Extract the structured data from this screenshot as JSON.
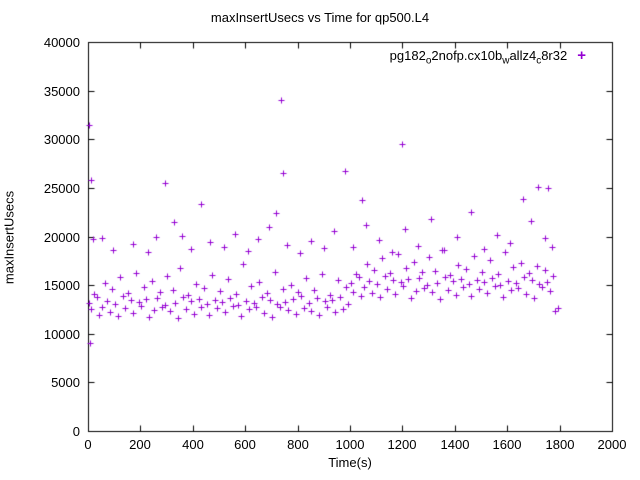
{
  "title": "maxInsertUsecs vs Time for qp500.L4",
  "legend": {
    "parts": [
      "pg182",
      "o",
      "2nofp.cx10b",
      "w",
      "allz4",
      "c",
      "8r32"
    ],
    "marker": "+",
    "color": "#9400d3"
  },
  "chart_data": {
    "type": "scatter",
    "title": "maxInsertUsecs vs Time for qp500.L4",
    "xlabel": "Time(s)",
    "ylabel": "maxInsertUsecs",
    "xlim": [
      0,
      2000
    ],
    "ylim": [
      0,
      40000
    ],
    "x_ticks": [
      0,
      200,
      400,
      600,
      800,
      1000,
      1200,
      1400,
      1600,
      1800,
      2000
    ],
    "y_ticks": [
      0,
      5000,
      10000,
      15000,
      20000,
      25000,
      30000,
      35000,
      40000
    ],
    "grid": false,
    "legend_position": "top-right",
    "series": [
      {
        "name": "pg182_o2nofp.cx10b_wallz4_c8r32",
        "color": "#9400d3",
        "marker": "plus",
        "points": [
          [
            3,
            13200
          ],
          [
            13,
            12500
          ],
          [
            23,
            14100
          ],
          [
            33,
            13800
          ],
          [
            43,
            11900
          ],
          [
            53,
            12800
          ],
          [
            63,
            15200
          ],
          [
            73,
            13400
          ],
          [
            83,
            12200
          ],
          [
            93,
            14600
          ],
          [
            103,
            13100
          ],
          [
            113,
            11800
          ],
          [
            123,
            15800
          ],
          [
            133,
            13900
          ],
          [
            143,
            12600
          ],
          [
            153,
            14200
          ],
          [
            163,
            13500
          ],
          [
            173,
            12100
          ],
          [
            183,
            16200
          ],
          [
            193,
            13300
          ],
          [
            203,
            12900
          ],
          [
            213,
            14800
          ],
          [
            223,
            13600
          ],
          [
            233,
            11700
          ],
          [
            243,
            15400
          ],
          [
            253,
            12400
          ],
          [
            263,
            13700
          ],
          [
            273,
            14300
          ],
          [
            283,
            12700
          ],
          [
            293,
            13000
          ],
          [
            303,
            15900
          ],
          [
            313,
            12300
          ],
          [
            323,
            14500
          ],
          [
            333,
            13200
          ],
          [
            343,
            11600
          ],
          [
            353,
            16800
          ],
          [
            363,
            13800
          ],
          [
            373,
            12500
          ],
          [
            383,
            14000
          ],
          [
            393,
            13400
          ],
          [
            403,
            12000
          ],
          [
            413,
            15100
          ],
          [
            423,
            13600
          ],
          [
            433,
            12800
          ],
          [
            443,
            14700
          ],
          [
            453,
            13100
          ],
          [
            463,
            11900
          ],
          [
            473,
            16000
          ],
          [
            483,
            13500
          ],
          [
            493,
            12600
          ],
          [
            503,
            14400
          ],
          [
            513,
            13300
          ],
          [
            523,
            12200
          ],
          [
            533,
            15600
          ],
          [
            543,
            13700
          ],
          [
            553,
            12900
          ],
          [
            563,
            14100
          ],
          [
            573,
            13000
          ],
          [
            583,
            11800
          ],
          [
            593,
            17200
          ],
          [
            603,
            13400
          ],
          [
            613,
            12500
          ],
          [
            623,
            14900
          ],
          [
            633,
            13200
          ],
          [
            643,
            12700
          ],
          [
            653,
            15300
          ],
          [
            663,
            13800
          ],
          [
            673,
            12100
          ],
          [
            683,
            14200
          ],
          [
            693,
            13500
          ],
          [
            703,
            11700
          ],
          [
            713,
            16400
          ],
          [
            723,
            13100
          ],
          [
            733,
            12800
          ],
          [
            743,
            14600
          ],
          [
            753,
            13300
          ],
          [
            763,
            12400
          ],
          [
            773,
            15000
          ],
          [
            783,
            13600
          ],
          [
            793,
            12000
          ],
          [
            803,
            14300
          ],
          [
            813,
            13900
          ],
          [
            823,
            12600
          ],
          [
            833,
            15700
          ],
          [
            843,
            13200
          ],
          [
            853,
            12300
          ],
          [
            863,
            14500
          ],
          [
            873,
            13700
          ],
          [
            883,
            11900
          ],
          [
            893,
            16100
          ],
          [
            903,
            13400
          ],
          [
            913,
            12700
          ],
          [
            923,
            14000
          ],
          [
            933,
            13500
          ],
          [
            943,
            12200
          ],
          [
            953,
            15500
          ],
          [
            963,
            13800
          ],
          [
            973,
            12500
          ],
          [
            983,
            14800
          ],
          [
            993,
            13100
          ],
          [
            1003,
            15200
          ],
          [
            1013,
            14300
          ],
          [
            1023,
            16100
          ],
          [
            1033,
            15800
          ],
          [
            1043,
            13900
          ],
          [
            1053,
            14800
          ],
          [
            1063,
            17200
          ],
          [
            1073,
            15400
          ],
          [
            1083,
            14200
          ],
          [
            1093,
            16600
          ],
          [
            1103,
            15100
          ],
          [
            1113,
            13800
          ],
          [
            1123,
            17800
          ],
          [
            1133,
            15900
          ],
          [
            1143,
            14600
          ],
          [
            1153,
            16200
          ],
          [
            1163,
            15500
          ],
          [
            1173,
            14100
          ],
          [
            1183,
            18200
          ],
          [
            1193,
            15300
          ],
          [
            1203,
            14900
          ],
          [
            1213,
            16800
          ],
          [
            1223,
            15600
          ],
          [
            1233,
            13700
          ],
          [
            1243,
            17400
          ],
          [
            1253,
            14400
          ],
          [
            1263,
            15700
          ],
          [
            1273,
            16300
          ],
          [
            1283,
            14700
          ],
          [
            1293,
            15000
          ],
          [
            1303,
            17900
          ],
          [
            1313,
            14300
          ],
          [
            1323,
            16500
          ],
          [
            1333,
            15200
          ],
          [
            1343,
            13600
          ],
          [
            1353,
            18600
          ],
          [
            1363,
            15800
          ],
          [
            1373,
            14500
          ],
          [
            1383,
            16000
          ],
          [
            1393,
            15400
          ],
          [
            1403,
            14000
          ],
          [
            1413,
            17100
          ],
          [
            1423,
            15600
          ],
          [
            1433,
            14800
          ],
          [
            1443,
            16700
          ],
          [
            1453,
            15100
          ],
          [
            1463,
            13900
          ],
          [
            1473,
            18000
          ],
          [
            1483,
            15500
          ],
          [
            1493,
            14600
          ],
          [
            1503,
            16400
          ],
          [
            1513,
            15300
          ],
          [
            1523,
            14200
          ],
          [
            1533,
            17600
          ],
          [
            1543,
            15700
          ],
          [
            1553,
            14900
          ],
          [
            1563,
            16100
          ],
          [
            1573,
            15000
          ],
          [
            1583,
            13800
          ],
          [
            1593,
            18400
          ],
          [
            1603,
            15400
          ],
          [
            1613,
            14500
          ],
          [
            1623,
            16900
          ],
          [
            1633,
            15200
          ],
          [
            1643,
            14700
          ],
          [
            1653,
            17300
          ],
          [
            1663,
            15800
          ],
          [
            1673,
            14100
          ],
          [
            1683,
            16200
          ],
          [
            1693,
            15500
          ],
          [
            1703,
            13700
          ],
          [
            1713,
            17000
          ],
          [
            1723,
            15100
          ],
          [
            1733,
            14800
          ],
          [
            1743,
            16600
          ],
          [
            1753,
            15300
          ],
          [
            1763,
            14400
          ],
          [
            1773,
            15900
          ],
          [
            1783,
            12300
          ],
          [
            1793,
            12600
          ],
          [
            55,
            19800
          ],
          [
            95,
            18600
          ],
          [
            170,
            19200
          ],
          [
            230,
            18400
          ],
          [
            260,
            19900
          ],
          [
            295,
            25500
          ],
          [
            330,
            21500
          ],
          [
            360,
            20100
          ],
          [
            395,
            18700
          ],
          [
            430,
            23300
          ],
          [
            465,
            19400
          ],
          [
            520,
            18900
          ],
          [
            560,
            20300
          ],
          [
            610,
            18500
          ],
          [
            650,
            19700
          ],
          [
            690,
            21000
          ],
          [
            718,
            22400
          ],
          [
            760,
            19100
          ],
          [
            810,
            18300
          ],
          [
            850,
            19500
          ],
          [
            900,
            18800
          ],
          [
            940,
            20600
          ],
          [
            1010,
            18900
          ],
          [
            1060,
            21200
          ],
          [
            1110,
            19600
          ],
          [
            1160,
            18400
          ],
          [
            1210,
            20800
          ],
          [
            1260,
            19000
          ],
          [
            1310,
            21800
          ],
          [
            1360,
            18600
          ],
          [
            1410,
            19900
          ],
          [
            1460,
            22500
          ],
          [
            1510,
            18700
          ],
          [
            1560,
            20200
          ],
          [
            1610,
            19300
          ],
          [
            1660,
            23900
          ],
          [
            1690,
            21600
          ],
          [
            1718,
            25100
          ],
          [
            1745,
            19800
          ],
          [
            1770,
            18900
          ],
          [
            2,
            31500
          ],
          [
            10,
            25800
          ],
          [
            6,
            9100
          ],
          [
            18,
            19700
          ],
          [
            735,
            34000
          ],
          [
            745,
            26500
          ],
          [
            980,
            26700
          ],
          [
            1045,
            23800
          ],
          [
            1200,
            29500
          ],
          [
            1755,
            25000
          ]
        ]
      }
    ]
  }
}
